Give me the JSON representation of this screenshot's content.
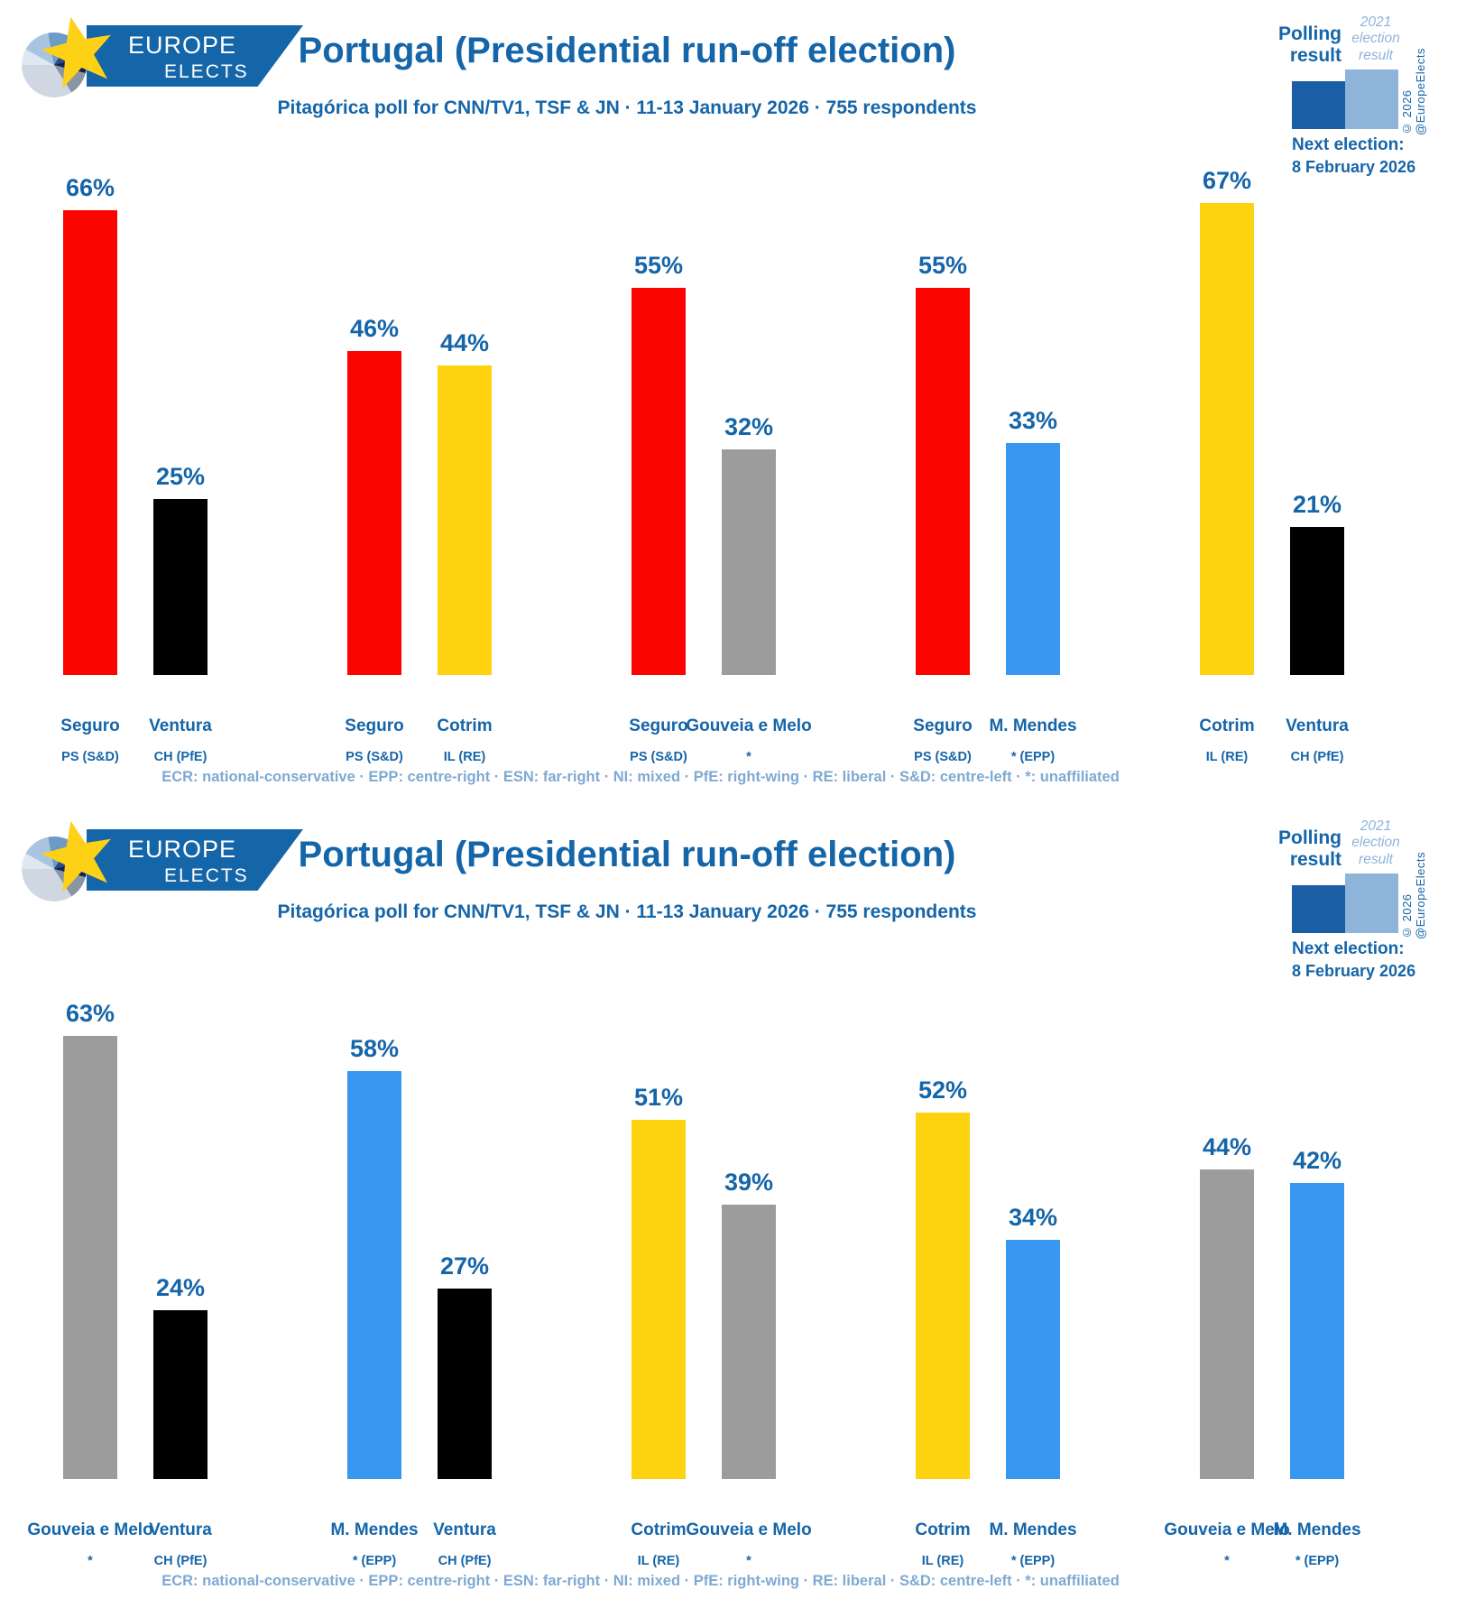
{
  "logo": {
    "line1": "EUROPE",
    "line2": "ELECTS"
  },
  "legend": {
    "polling_label": "Polling result",
    "election_label": "2021 election result",
    "next_election_label": "Next election:",
    "next_election_date": "8 February 2026",
    "copyright": "© 2026 @EuropeElects"
  },
  "footnote": "ECR: national-conservative · EPP: centre-right · ESN: far-right · NI: mixed · PfE: right-wing · RE: liberal · S&D: centre-left · *: unaffiliated",
  "colors": {
    "text_blue": "#1565a9",
    "light_blue": "#8fb4da",
    "footnote_blue": "#7fa9d2",
    "legend_dark_square": "#1a5fa6",
    "legend_light_square": "#8fb4da",
    "red": "#fa0500",
    "black": "#000000",
    "yellow": "#fdd20e",
    "gray": "#9c9c9c",
    "blue": "#3897f0"
  },
  "chart_data": [
    {
      "type": "bar",
      "title": "Portugal (Presidential run-off election)",
      "subtitle": "Pitagórica poll for CNN/TV1, TSF & JN · 11-13 January 2026 · 755 respondents",
      "unit": "%",
      "ylim": [
        0,
        100
      ],
      "grid": false,
      "pairs": [
        {
          "bars": [
            {
              "candidate": "Seguro",
              "party": "PS (S&D)",
              "value": 66,
              "color": "red"
            },
            {
              "candidate": "Ventura",
              "party": "CH (PfE)",
              "value": 25,
              "color": "black"
            }
          ]
        },
        {
          "bars": [
            {
              "candidate": "Seguro",
              "party": "PS (S&D)",
              "value": 46,
              "color": "red"
            },
            {
              "candidate": "Cotrim",
              "party": "IL (RE)",
              "value": 44,
              "color": "yellow"
            }
          ]
        },
        {
          "bars": [
            {
              "candidate": "Seguro",
              "party": "PS (S&D)",
              "value": 55,
              "color": "red"
            },
            {
              "candidate": "Gouveia e Melo",
              "party": "*",
              "value": 32,
              "color": "gray"
            }
          ]
        },
        {
          "bars": [
            {
              "candidate": "Seguro",
              "party": "PS (S&D)",
              "value": 55,
              "color": "red"
            },
            {
              "candidate": "M. Mendes",
              "party": "* (EPP)",
              "value": 33,
              "color": "blue"
            }
          ]
        },
        {
          "bars": [
            {
              "candidate": "Cotrim",
              "party": "IL (RE)",
              "value": 67,
              "color": "yellow"
            },
            {
              "candidate": "Ventura",
              "party": "CH (PfE)",
              "value": 21,
              "color": "black"
            }
          ]
        }
      ]
    },
    {
      "type": "bar",
      "title": "Portugal (Presidential run-off election)",
      "subtitle": "Pitagórica poll for CNN/TV1, TSF & JN · 11-13 January 2026 · 755 respondents",
      "unit": "%",
      "ylim": [
        0,
        100
      ],
      "grid": false,
      "pairs": [
        {
          "bars": [
            {
              "candidate": "Gouveia e Melo",
              "party": "*",
              "value": 63,
              "color": "gray"
            },
            {
              "candidate": "Ventura",
              "party": "CH (PfE)",
              "value": 24,
              "color": "black"
            }
          ]
        },
        {
          "bars": [
            {
              "candidate": "M. Mendes",
              "party": "* (EPP)",
              "value": 58,
              "color": "blue"
            },
            {
              "candidate": "Ventura",
              "party": "CH (PfE)",
              "value": 27,
              "color": "black"
            }
          ]
        },
        {
          "bars": [
            {
              "candidate": "Cotrim",
              "party": "IL (RE)",
              "value": 51,
              "color": "yellow"
            },
            {
              "candidate": "Gouveia e Melo",
              "party": "*",
              "value": 39,
              "color": "gray"
            }
          ]
        },
        {
          "bars": [
            {
              "candidate": "Cotrim",
              "party": "IL (RE)",
              "value": 52,
              "color": "yellow"
            },
            {
              "candidate": "M. Mendes",
              "party": "* (EPP)",
              "value": 34,
              "color": "blue"
            }
          ]
        },
        {
          "bars": [
            {
              "candidate": "Gouveia e Melo",
              "party": "*",
              "value": 44,
              "color": "gray"
            },
            {
              "candidate": "M. Mendes",
              "party": "* (EPP)",
              "value": 42,
              "color": "blue"
            }
          ]
        }
      ]
    }
  ]
}
